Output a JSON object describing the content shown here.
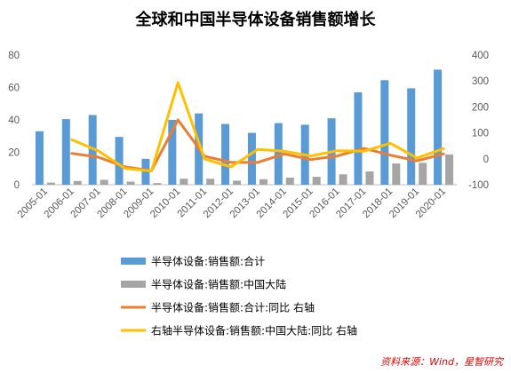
{
  "chart_data": {
    "type": "bar",
    "title": "全球和中国半导体设备销售额增长",
    "categories": [
      "2005-01",
      "2006-01",
      "2007-01",
      "2008-01",
      "2009-01",
      "2010-01",
      "2011-01",
      "2012-01",
      "2013-01",
      "2014-01",
      "2015-01",
      "2016-01",
      "2017-01",
      "2018-01",
      "2019-01",
      "2020-01"
    ],
    "ylim": [
      0,
      80
    ],
    "y_ticks": [
      0,
      20,
      40,
      60,
      80
    ],
    "y2lim": [
      -100,
      400
    ],
    "y2_ticks": [
      -100,
      0,
      100,
      200,
      300,
      400
    ],
    "grid": false,
    "legend_position": "bottom",
    "series": [
      {
        "name": "半导体设备:销售额:合计",
        "type": "bar",
        "axis": "left",
        "color": "#5b9bd5",
        "values": [
          33,
          40.5,
          43,
          29.5,
          16,
          40,
          44,
          37.5,
          32,
          38,
          37,
          41,
          57,
          64.5,
          59.5,
          71
        ]
      },
      {
        "name": "半导体设备:销售额:中国大陆",
        "type": "bar",
        "axis": "left",
        "color": "#a5a5a5",
        "values": [
          1.3,
          2.3,
          3,
          1.9,
          1,
          3.7,
          3.7,
          2.5,
          3.4,
          4.4,
          4.9,
          6.4,
          8.2,
          13.1,
          13.5,
          18.7
        ]
      },
      {
        "name": "半导体设备:销售额:合计:同比  右轴",
        "type": "line",
        "axis": "right",
        "color": "#ed7d31",
        "values": [
          null,
          21,
          6,
          -31,
          -46,
          150,
          10,
          -14,
          -14,
          19,
          -3,
          11,
          40,
          14,
          -8,
          19
        ]
      },
      {
        "name": "右轴半导体设备:销售额:中国大陆:同比  右轴",
        "type": "line",
        "axis": "right",
        "color": "#ffc000",
        "values": [
          null,
          74,
          30,
          -37,
          -47,
          294,
          -1,
          -31,
          36,
          29,
          11,
          31,
          29,
          60,
          3,
          39
        ]
      }
    ]
  },
  "source": "资料来源：Wind，星智研究"
}
